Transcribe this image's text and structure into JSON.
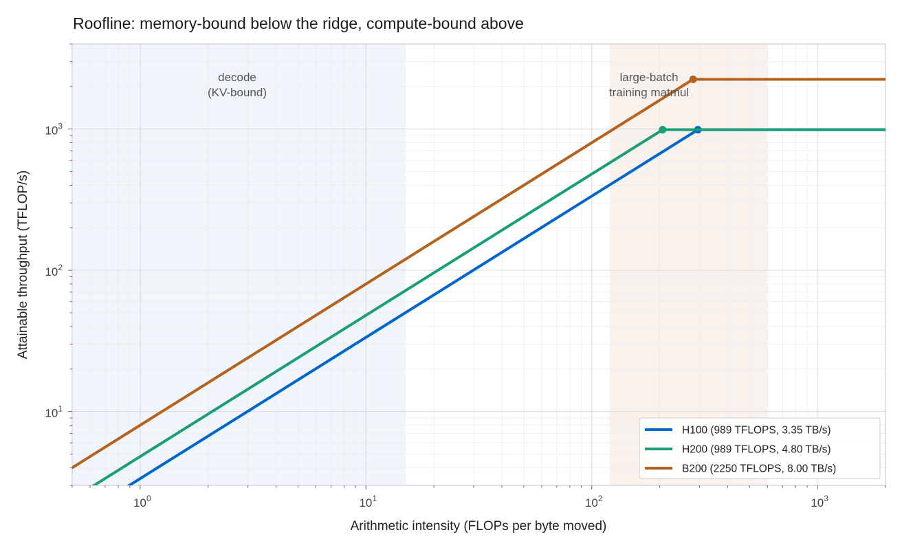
{
  "chart_data": {
    "type": "line",
    "title": "Roofline: memory-bound below the ridge, compute-bound above",
    "xlabel": "Arithmetic intensity  (FLOPs per byte moved)",
    "ylabel": "Attainable throughput  (TFLOP/s)",
    "xscale": "log",
    "yscale": "log",
    "xlim": [
      0.5,
      2000
    ],
    "ylim": [
      3,
      4000
    ],
    "grid": true,
    "x_ticks": [
      {
        "base": "10",
        "exp": "0",
        "value": 1
      },
      {
        "base": "10",
        "exp": "1",
        "value": 10
      },
      {
        "base": "10",
        "exp": "2",
        "value": 100
      },
      {
        "base": "10",
        "exp": "3",
        "value": 1000
      }
    ],
    "y_ticks": [
      {
        "base": "10",
        "exp": "1",
        "value": 10
      },
      {
        "base": "10",
        "exp": "2",
        "value": 100
      },
      {
        "base": "10",
        "exp": "3",
        "value": 1000
      }
    ],
    "regions": [
      {
        "lines": [
          "decode",
          "(KV-bound)"
        ],
        "x_range": [
          0.5,
          15
        ],
        "color": "#dce8f7"
      },
      {
        "lines": [
          "large-batch",
          "training matmul"
        ],
        "x_range": [
          120,
          600
        ],
        "color": "#f3e6da"
      }
    ],
    "series": [
      {
        "name": "H100  (989 TFLOPS, 3.35 TB/s)",
        "peak_tflops": 989,
        "bandwidth_tbs": 3.35,
        "ridge_x": 295.2,
        "color": "#0066cc"
      },
      {
        "name": "H200  (989 TFLOPS, 4.80 TB/s)",
        "peak_tflops": 989,
        "bandwidth_tbs": 4.8,
        "ridge_x": 206.0,
        "color": "#1a9e77"
      },
      {
        "name": "B200  (2250 TFLOPS, 8.00 TB/s)",
        "peak_tflops": 2250,
        "bandwidth_tbs": 8.0,
        "ridge_x": 281.25,
        "color": "#b5621e"
      }
    ],
    "legend_position": "lower-right"
  }
}
